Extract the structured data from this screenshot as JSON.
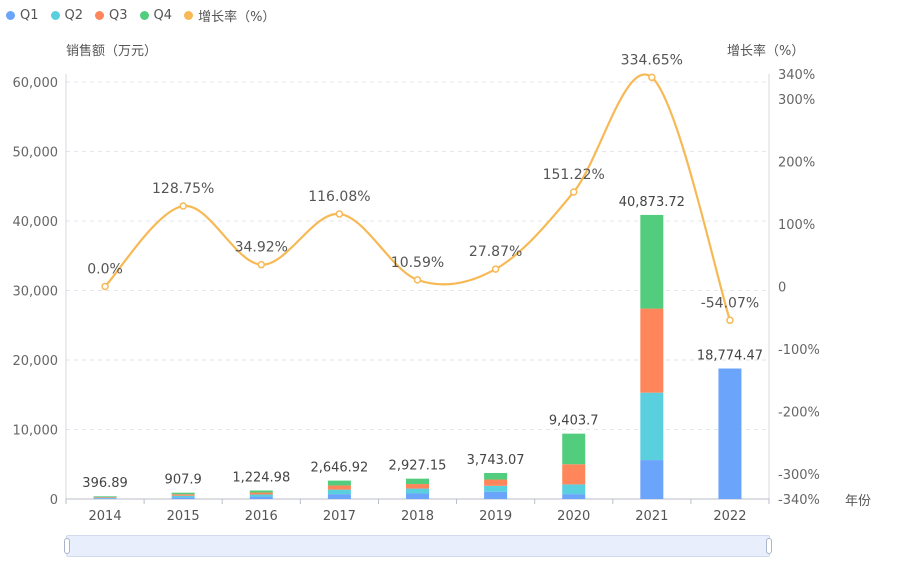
{
  "legend": {
    "q1": "Q1",
    "q2": "Q2",
    "q3": "Q3",
    "q4": "Q4",
    "growth": "增长率（%）"
  },
  "colors": {
    "q1": "#6aa4fb",
    "q2": "#5ad0de",
    "q3": "#ff855a",
    "q4": "#52cd7e",
    "growth": "#f7b955"
  },
  "chart_data": {
    "type": "bar",
    "stacked": true,
    "categories": [
      "2014",
      "2015",
      "2016",
      "2017",
      "2018",
      "2019",
      "2020",
      "2021",
      "2022"
    ],
    "series": [
      {
        "name": "Q1",
        "values": [
          100,
          250,
          350,
          700,
          800,
          1050,
          700,
          5600,
          18774.47
        ]
      },
      {
        "name": "Q2",
        "values": [
          100,
          220,
          300,
          650,
          700,
          850,
          1400,
          9700,
          0
        ]
      },
      {
        "name": "Q3",
        "values": [
          100,
          210,
          280,
          600,
          650,
          900,
          2900,
          12100,
          0
        ]
      },
      {
        "name": "Q4",
        "values": [
          96.89,
          227.9,
          294.98,
          696.92,
          777.15,
          943.07,
          4403.7,
          13473.72,
          0
        ]
      }
    ],
    "totals": [
      396.89,
      907.9,
      1224.98,
      2646.92,
      2927.15,
      3743.07,
      9403.7,
      40873.72,
      18774.47
    ],
    "total_labels": [
      "396.89",
      "907.9",
      "1,224.98",
      "2,646.92",
      "2,927.15",
      "3,743.07",
      "9,403.7",
      "40,873.72",
      "18,774.47"
    ],
    "growth_line": {
      "name": "增长率（%）",
      "values": [
        0.0,
        128.75,
        34.92,
        116.08,
        10.59,
        27.87,
        151.22,
        334.65,
        -54.07
      ],
      "labels": [
        "0.0%",
        "128.75%",
        "34.92%",
        "116.08%",
        "10.59%",
        "27.87%",
        "151.22%",
        "334.65%",
        "-54.07%"
      ]
    },
    "ylabel_left": "销售额（万元）",
    "ylabel_right": "增长率（%）",
    "xlabel": "年份",
    "ylim_left": [
      0,
      60000
    ],
    "ylim_right": [
      -340,
      340
    ],
    "left_ticks": [
      {
        "value": 0,
        "label": "0"
      },
      {
        "value": 10000,
        "label": "10,000"
      },
      {
        "value": 20000,
        "label": "20,000"
      },
      {
        "value": 30000,
        "label": "30,000"
      },
      {
        "value": 40000,
        "label": "40,000"
      },
      {
        "value": 50000,
        "label": "50,000"
      },
      {
        "value": 60000,
        "label": "60,000"
      }
    ],
    "right_ticks": [
      {
        "value": 340,
        "label": "340%"
      },
      {
        "value": 300,
        "label": "300%"
      },
      {
        "value": 200,
        "label": "200%"
      },
      {
        "value": 100,
        "label": "100%"
      },
      {
        "value": 0,
        "label": "0"
      },
      {
        "value": -100,
        "label": "-100%"
      },
      {
        "value": -200,
        "label": "-200%"
      },
      {
        "value": -300,
        "label": "-300%"
      },
      {
        "value": -340,
        "label": "-340%"
      }
    ],
    "grid": true,
    "legend_position": "top-left"
  }
}
